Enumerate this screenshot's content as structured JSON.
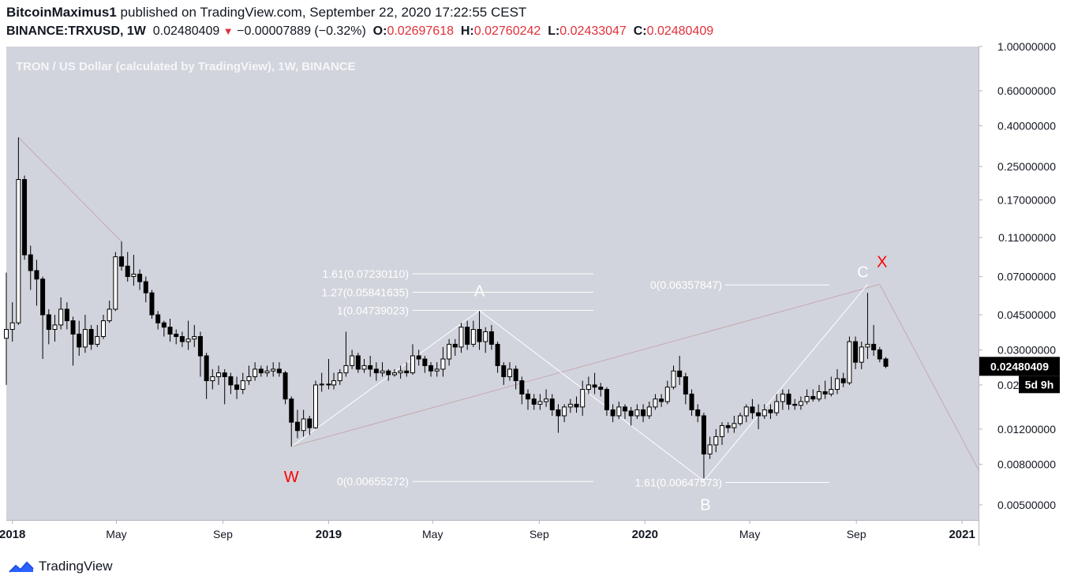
{
  "header": {
    "author": "BitcoinMaximus1",
    "published_text": "published on TradingView.com, September 22, 2020 17:22:55 CEST",
    "symbol": "BINANCE:TRXUSD, 1W",
    "last_price": "0.02480409",
    "change": "−0.00007889 (−0.32%)",
    "open_label": "O:",
    "open": "0.02697618",
    "high_label": "H:",
    "high": "0.02760242",
    "low_label": "L:",
    "low": "0.02433047",
    "close_label": "C:",
    "close": "0.02480409"
  },
  "footer": {
    "brand": "TradingView"
  },
  "chart_data": {
    "type": "candlestick",
    "title": "TRON / US Dollar (calculated by TradingView), 1W, BINANCE",
    "scale": "log",
    "currency_label": "USD",
    "ylim": [
      0.0042,
      1.0
    ],
    "y_ticks": [
      "1.00000000",
      "0.60000000",
      "0.40000000",
      "0.25000000",
      "0.17000000",
      "0.11000000",
      "0.07000000",
      "0.04500000",
      "0.03000000",
      "0.02000000",
      "0.01200000",
      "0.00800000",
      "0.00500000"
    ],
    "x_range": [
      "2017-12-25",
      "2021-01-20"
    ],
    "x_ticks": [
      {
        "date": "2018-01-01",
        "label": "2018"
      },
      {
        "date": "2018-05-01",
        "label": "May"
      },
      {
        "date": "2018-09-01",
        "label": "Sep"
      },
      {
        "date": "2019-01-01",
        "label": "2019"
      },
      {
        "date": "2019-05-01",
        "label": "May"
      },
      {
        "date": "2019-09-01",
        "label": "Sep"
      },
      {
        "date": "2020-01-01",
        "label": "2020"
      },
      {
        "date": "2020-05-01",
        "label": "May"
      },
      {
        "date": "2020-09-01",
        "label": "Sep"
      },
      {
        "date": "2021-01-01",
        "label": "2021"
      }
    ],
    "current_price_label": "0.02480409",
    "countdown_label": "5d 9h",
    "grid": false,
    "candles": [
      [
        "2017-12-25",
        0.0343,
        0.038,
        0.0733,
        0.02
      ],
      [
        "2018-01-01",
        0.038,
        0.041,
        0.052,
        0.033
      ],
      [
        "2018-01-08",
        0.041,
        0.215,
        0.35,
        0.04
      ],
      [
        "2018-01-15",
        0.215,
        0.09,
        0.225,
        0.085
      ],
      [
        "2018-01-22",
        0.09,
        0.075,
        0.1,
        0.06
      ],
      [
        "2018-01-29",
        0.075,
        0.068,
        0.085,
        0.05
      ],
      [
        "2018-02-05",
        0.068,
        0.045,
        0.07,
        0.027
      ],
      [
        "2018-02-12",
        0.045,
        0.038,
        0.048,
        0.032
      ],
      [
        "2018-02-19",
        0.038,
        0.04,
        0.045,
        0.033
      ],
      [
        "2018-02-26",
        0.04,
        0.048,
        0.055,
        0.038
      ],
      [
        "2018-03-05",
        0.048,
        0.042,
        0.052,
        0.038
      ],
      [
        "2018-03-12",
        0.042,
        0.036,
        0.044,
        0.025
      ],
      [
        "2018-03-19",
        0.036,
        0.031,
        0.042,
        0.028
      ],
      [
        "2018-03-26",
        0.031,
        0.038,
        0.045,
        0.029
      ],
      [
        "2018-04-02",
        0.038,
        0.032,
        0.04,
        0.03
      ],
      [
        "2018-04-09",
        0.032,
        0.035,
        0.04,
        0.031
      ],
      [
        "2018-04-16",
        0.035,
        0.042,
        0.045,
        0.034
      ],
      [
        "2018-04-23",
        0.042,
        0.048,
        0.053,
        0.041
      ],
      [
        "2018-04-30",
        0.048,
        0.088,
        0.093,
        0.047
      ],
      [
        "2018-05-07",
        0.088,
        0.079,
        0.105,
        0.075
      ],
      [
        "2018-05-14",
        0.079,
        0.07,
        0.093,
        0.066
      ],
      [
        "2018-05-21",
        0.07,
        0.072,
        0.09,
        0.063
      ],
      [
        "2018-05-28",
        0.072,
        0.066,
        0.076,
        0.06
      ],
      [
        "2018-06-04",
        0.066,
        0.058,
        0.07,
        0.052
      ],
      [
        "2018-06-11",
        0.058,
        0.045,
        0.06,
        0.043
      ],
      [
        "2018-06-18",
        0.045,
        0.041,
        0.047,
        0.038
      ],
      [
        "2018-06-25",
        0.041,
        0.039,
        0.042,
        0.035
      ],
      [
        "2018-07-02",
        0.039,
        0.036,
        0.043,
        0.033
      ],
      [
        "2018-07-09",
        0.036,
        0.035,
        0.038,
        0.032
      ],
      [
        "2018-07-16",
        0.035,
        0.033,
        0.037,
        0.031
      ],
      [
        "2018-07-23",
        0.033,
        0.034,
        0.042,
        0.03
      ],
      [
        "2018-07-30",
        0.034,
        0.035,
        0.04,
        0.031
      ],
      [
        "2018-08-06",
        0.035,
        0.028,
        0.037,
        0.022
      ],
      [
        "2018-08-13",
        0.028,
        0.021,
        0.029,
        0.017
      ],
      [
        "2018-08-20",
        0.021,
        0.022,
        0.024,
        0.019
      ],
      [
        "2018-08-27",
        0.022,
        0.023,
        0.025,
        0.02
      ],
      [
        "2018-09-03",
        0.023,
        0.022,
        0.024,
        0.016
      ],
      [
        "2018-09-10",
        0.022,
        0.02,
        0.023,
        0.018
      ],
      [
        "2018-09-17",
        0.02,
        0.019,
        0.022,
        0.017
      ],
      [
        "2018-09-24",
        0.019,
        0.021,
        0.023,
        0.018
      ],
      [
        "2018-10-01",
        0.021,
        0.022,
        0.025,
        0.02
      ],
      [
        "2018-10-08",
        0.022,
        0.024,
        0.026,
        0.021
      ],
      [
        "2018-10-15",
        0.024,
        0.023,
        0.025,
        0.022
      ],
      [
        "2018-10-22",
        0.023,
        0.0235,
        0.025,
        0.022
      ],
      [
        "2018-10-29",
        0.0235,
        0.024,
        0.026,
        0.022
      ],
      [
        "2018-11-05",
        0.024,
        0.023,
        0.026,
        0.022
      ],
      [
        "2018-11-12",
        0.023,
        0.017,
        0.0235,
        0.016
      ],
      [
        "2018-11-19",
        0.017,
        0.013,
        0.0175,
        0.0098
      ],
      [
        "2018-11-26",
        0.013,
        0.0118,
        0.015,
        0.0108
      ],
      [
        "2018-12-03",
        0.0118,
        0.0135,
        0.015,
        0.011
      ],
      [
        "2018-12-10",
        0.0135,
        0.0122,
        0.014,
        0.0112
      ],
      [
        "2018-12-17",
        0.0122,
        0.02,
        0.021,
        0.012
      ],
      [
        "2018-12-24",
        0.02,
        0.0202,
        0.023,
        0.0185
      ],
      [
        "2019-01-01",
        0.0202,
        0.02,
        0.027,
        0.019
      ],
      [
        "2019-01-07",
        0.02,
        0.021,
        0.023,
        0.019
      ],
      [
        "2019-01-14",
        0.021,
        0.023,
        0.024,
        0.02
      ],
      [
        "2019-01-21",
        0.023,
        0.025,
        0.037,
        0.022
      ],
      [
        "2019-01-28",
        0.025,
        0.028,
        0.03,
        0.024
      ],
      [
        "2019-02-04",
        0.028,
        0.024,
        0.029,
        0.023
      ],
      [
        "2019-02-11",
        0.024,
        0.025,
        0.027,
        0.023
      ],
      [
        "2019-02-18",
        0.025,
        0.024,
        0.028,
        0.022
      ],
      [
        "2019-02-25",
        0.024,
        0.023,
        0.026,
        0.021
      ],
      [
        "2019-03-04",
        0.023,
        0.0235,
        0.026,
        0.022
      ],
      [
        "2019-03-11",
        0.0235,
        0.0225,
        0.024,
        0.021
      ],
      [
        "2019-03-18",
        0.0225,
        0.023,
        0.024,
        0.022
      ],
      [
        "2019-03-25",
        0.023,
        0.0235,
        0.025,
        0.0215
      ],
      [
        "2019-04-01",
        0.0235,
        0.023,
        0.026,
        0.022
      ],
      [
        "2019-04-08",
        0.023,
        0.028,
        0.032,
        0.0225
      ],
      [
        "2019-04-15",
        0.028,
        0.027,
        0.03,
        0.025
      ],
      [
        "2019-04-22",
        0.027,
        0.025,
        0.028,
        0.023
      ],
      [
        "2019-04-29",
        0.025,
        0.0235,
        0.026,
        0.022
      ],
      [
        "2019-05-06",
        0.0235,
        0.024,
        0.026,
        0.022
      ],
      [
        "2019-05-13",
        0.024,
        0.027,
        0.031,
        0.022
      ],
      [
        "2019-05-20",
        0.027,
        0.032,
        0.034,
        0.025
      ],
      [
        "2019-05-27",
        0.032,
        0.031,
        0.034,
        0.028
      ],
      [
        "2019-06-03",
        0.031,
        0.039,
        0.041,
        0.029
      ],
      [
        "2019-06-10",
        0.039,
        0.032,
        0.042,
        0.03
      ],
      [
        "2019-06-17",
        0.032,
        0.038,
        0.042,
        0.031
      ],
      [
        "2019-06-24",
        0.038,
        0.033,
        0.047,
        0.03
      ],
      [
        "2019-07-01",
        0.033,
        0.037,
        0.039,
        0.029
      ],
      [
        "2019-07-08",
        0.037,
        0.032,
        0.04,
        0.03
      ],
      [
        "2019-07-15",
        0.032,
        0.025,
        0.033,
        0.023
      ],
      [
        "2019-07-22",
        0.025,
        0.022,
        0.026,
        0.02
      ],
      [
        "2019-07-29",
        0.022,
        0.024,
        0.026,
        0.021
      ],
      [
        "2019-08-05",
        0.024,
        0.021,
        0.025,
        0.019
      ],
      [
        "2019-08-12",
        0.021,
        0.018,
        0.022,
        0.016
      ],
      [
        "2019-08-19",
        0.018,
        0.017,
        0.019,
        0.015
      ],
      [
        "2019-08-26",
        0.017,
        0.016,
        0.018,
        0.015
      ],
      [
        "2019-09-02",
        0.016,
        0.0165,
        0.018,
        0.015
      ],
      [
        "2019-09-09",
        0.0165,
        0.017,
        0.019,
        0.0155
      ],
      [
        "2019-09-16",
        0.017,
        0.015,
        0.018,
        0.014
      ],
      [
        "2019-09-23",
        0.015,
        0.014,
        0.016,
        0.0115
      ],
      [
        "2019-09-30",
        0.014,
        0.0155,
        0.016,
        0.013
      ],
      [
        "2019-10-07",
        0.0155,
        0.016,
        0.017,
        0.0145
      ],
      [
        "2019-10-14",
        0.016,
        0.0155,
        0.0175,
        0.0145
      ],
      [
        "2019-10-21",
        0.0155,
        0.019,
        0.021,
        0.014
      ],
      [
        "2019-10-28",
        0.019,
        0.02,
        0.022,
        0.018
      ],
      [
        "2019-11-04",
        0.02,
        0.0195,
        0.023,
        0.018
      ],
      [
        "2019-11-11",
        0.0195,
        0.019,
        0.0205,
        0.0175
      ],
      [
        "2019-11-18",
        0.019,
        0.015,
        0.0195,
        0.014
      ],
      [
        "2019-11-25",
        0.015,
        0.014,
        0.016,
        0.013
      ],
      [
        "2019-12-02",
        0.014,
        0.0155,
        0.0165,
        0.0135
      ],
      [
        "2019-12-09",
        0.0155,
        0.0148,
        0.016,
        0.0135
      ],
      [
        "2019-12-16",
        0.0148,
        0.014,
        0.0155,
        0.0125
      ],
      [
        "2019-12-23",
        0.014,
        0.015,
        0.016,
        0.0135
      ],
      [
        "2019-12-30",
        0.015,
        0.014,
        0.016,
        0.013
      ],
      [
        "2020-01-06",
        0.014,
        0.0155,
        0.0165,
        0.0135
      ],
      [
        "2020-01-13",
        0.0155,
        0.017,
        0.018,
        0.015
      ],
      [
        "2020-01-20",
        0.017,
        0.0165,
        0.018,
        0.0155
      ],
      [
        "2020-01-27",
        0.0165,
        0.0195,
        0.021,
        0.016
      ],
      [
        "2020-02-03",
        0.0195,
        0.0235,
        0.025,
        0.019
      ],
      [
        "2020-02-10",
        0.0235,
        0.022,
        0.028,
        0.02
      ],
      [
        "2020-02-17",
        0.022,
        0.018,
        0.023,
        0.016
      ],
      [
        "2020-02-24",
        0.018,
        0.015,
        0.019,
        0.014
      ],
      [
        "2020-03-02",
        0.015,
        0.014,
        0.016,
        0.013
      ],
      [
        "2020-03-09",
        0.014,
        0.009,
        0.0145,
        0.0068
      ],
      [
        "2020-03-16",
        0.009,
        0.01,
        0.011,
        0.0085
      ],
      [
        "2020-03-23",
        0.01,
        0.011,
        0.012,
        0.0092
      ],
      [
        "2020-03-30",
        0.011,
        0.0125,
        0.013,
        0.01
      ],
      [
        "2020-04-06",
        0.0125,
        0.0122,
        0.013,
        0.0115
      ],
      [
        "2020-04-13",
        0.0122,
        0.0128,
        0.014,
        0.0115
      ],
      [
        "2020-04-20",
        0.0128,
        0.014,
        0.0145,
        0.0125
      ],
      [
        "2020-04-27",
        0.014,
        0.0155,
        0.016,
        0.013
      ],
      [
        "2020-05-04",
        0.0155,
        0.0145,
        0.017,
        0.0135
      ],
      [
        "2020-05-11",
        0.0145,
        0.014,
        0.016,
        0.012
      ],
      [
        "2020-05-18",
        0.014,
        0.015,
        0.016,
        0.0135
      ],
      [
        "2020-05-25",
        0.015,
        0.0145,
        0.016,
        0.0135
      ],
      [
        "2020-06-01",
        0.0145,
        0.0165,
        0.018,
        0.014
      ],
      [
        "2020-06-08",
        0.0165,
        0.018,
        0.019,
        0.015
      ],
      [
        "2020-06-15",
        0.018,
        0.016,
        0.019,
        0.015
      ],
      [
        "2020-06-22",
        0.016,
        0.0158,
        0.017,
        0.015
      ],
      [
        "2020-06-29",
        0.0158,
        0.0165,
        0.0175,
        0.015
      ],
      [
        "2020-07-06",
        0.0165,
        0.0175,
        0.019,
        0.016
      ],
      [
        "2020-07-13",
        0.0175,
        0.017,
        0.019,
        0.0165
      ],
      [
        "2020-07-20",
        0.017,
        0.0185,
        0.02,
        0.0165
      ],
      [
        "2020-07-27",
        0.0185,
        0.018,
        0.021,
        0.017
      ],
      [
        "2020-08-03",
        0.018,
        0.019,
        0.022,
        0.0175
      ],
      [
        "2020-08-10",
        0.019,
        0.0215,
        0.024,
        0.018
      ],
      [
        "2020-08-17",
        0.0215,
        0.0205,
        0.023,
        0.0195
      ],
      [
        "2020-08-24",
        0.0205,
        0.033,
        0.035,
        0.02
      ],
      [
        "2020-08-31",
        0.033,
        0.026,
        0.035,
        0.024
      ],
      [
        "2020-09-07",
        0.026,
        0.031,
        0.033,
        0.024
      ],
      [
        "2020-09-14",
        0.031,
        0.032,
        0.058,
        0.027
      ],
      [
        "2020-09-21",
        0.032,
        0.03,
        0.04,
        0.028
      ],
      [
        "2020-09-28",
        0.03,
        0.027,
        0.031,
        0.026
      ],
      [
        "2020-10-05",
        0.027,
        0.0248,
        0.0276,
        0.0243
      ]
    ],
    "annotations": [
      {
        "text": "W",
        "color": "#ff0000"
      },
      {
        "text": "A",
        "color": "#ffffff"
      },
      {
        "text": "B",
        "color": "#ffffff"
      },
      {
        "text": "C",
        "color": "#ffffff"
      },
      {
        "text": "X",
        "color": "#ff0000"
      }
    ],
    "fib_levels_left": [
      {
        "label": "1.61(0.07230110)",
        "value": 0.0723011
      },
      {
        "label": "1.27(0.05841635)",
        "value": 0.05841635
      },
      {
        "label": "1(0.04739023)",
        "value": 0.04739023
      },
      {
        "label": "0(0.00655272)",
        "value": 0.00655272
      }
    ],
    "fib_levels_right": [
      {
        "label": "0(0.06357847)",
        "value": 0.06357847
      },
      {
        "label": "1.61(0.00647573)",
        "value": 0.00647573
      }
    ],
    "wave_path": [
      {
        "date": "2018-11-19",
        "price": 0.0098
      },
      {
        "date": "2019-06-24",
        "price": 0.0473
      },
      {
        "date": "2020-03-09",
        "price": 0.0066
      },
      {
        "date": "2020-09-14",
        "price": 0.064
      }
    ],
    "channel_lines": [
      {
        "from": {
          "date": "2018-01-08",
          "price": 0.35
        },
        "to": {
          "date": "2018-05-07",
          "price": 0.105
        }
      },
      {
        "from": {
          "date": "2018-11-19",
          "price": 0.0098
        },
        "to": {
          "date": "2020-09-28",
          "price": 0.064
        }
      },
      {
        "from": {
          "date": "2020-09-28",
          "price": 0.064
        },
        "to": {
          "date": "2021-01-20",
          "price": 0.0075
        }
      }
    ],
    "colors": {
      "background": "#d1d4dc",
      "candle_up": "#ffffff",
      "candle_down": "#000000",
      "outline": "#000000",
      "wave_line": "#ffffff",
      "channel_line": "#c7a8b1",
      "price_tag": "#000000",
      "label_red": "#ff0000",
      "label_white": "#ffffff"
    }
  }
}
